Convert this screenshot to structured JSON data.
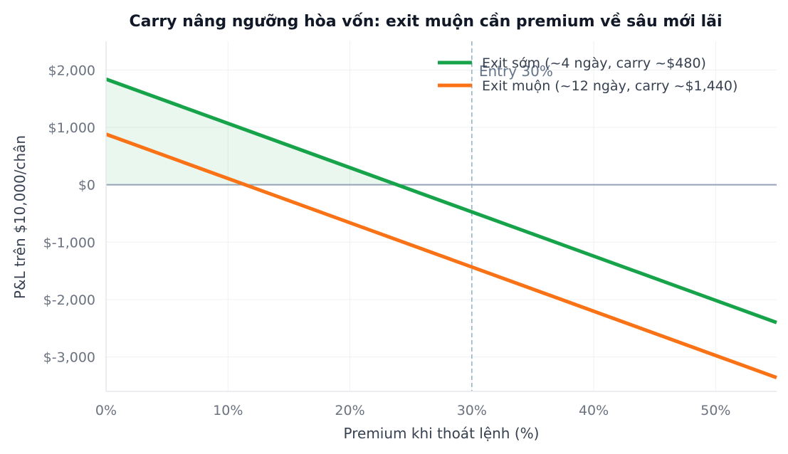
{
  "chart_data": {
    "type": "line",
    "title": "Carry nâng ngưỡng hòa vốn: exit muộn cần premium về sâu mới lãi",
    "xlabel": "Premium khi thoát lệnh (%)",
    "ylabel": "P&L trên $10,000/chân",
    "xlim": [
      0,
      55
    ],
    "ylim": [
      -3600,
      2500
    ],
    "x_ticks": [
      0,
      10,
      20,
      30,
      40,
      50
    ],
    "x_tick_labels": [
      "0%",
      "10%",
      "20%",
      "30%",
      "40%",
      "50%"
    ],
    "y_ticks": [
      2000,
      1000,
      0,
      -1000,
      -2000,
      -3000
    ],
    "y_tick_labels": [
      "$2,000",
      "$1,000",
      "$0",
      "$-1,000",
      "$-2,000",
      "$-3,000"
    ],
    "grid": true,
    "legend_position": "top-right",
    "series": [
      {
        "name": "Exit sớm (~4 ngày, carry ~$480)",
        "color": "#16a34a",
        "x": [
          0,
          55
        ],
        "y": [
          1840,
          -2400
        ]
      },
      {
        "name": "Exit muộn (~12 ngày, carry ~$1,440)",
        "color": "#f97316",
        "x": [
          0,
          55
        ],
        "y": [
          880,
          -3360
        ]
      }
    ],
    "fill_between": {
      "series_index": 0,
      "x_from": 0,
      "x_to": 23.9,
      "baseline": 0,
      "color": "#16a34a"
    },
    "zero_line": {
      "y": 0,
      "color": "#94a3b8"
    },
    "annotations": [
      {
        "type": "vline",
        "x": 30,
        "label": "Entry 30%",
        "color": "#94b4c8"
      }
    ]
  }
}
